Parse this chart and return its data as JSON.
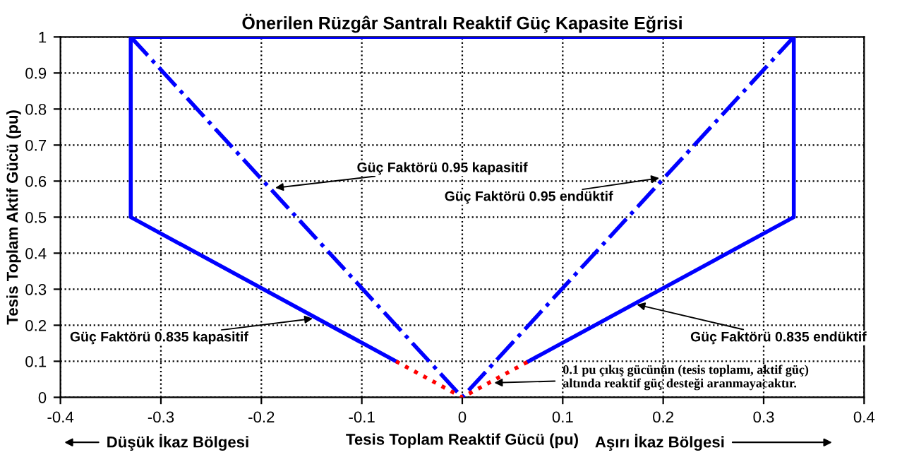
{
  "chart_data": {
    "type": "line",
    "title": "Önerilen Rüzgâr Santralı Reaktif Güç Kapasite Eğrisi",
    "xlabel": "Tesis Toplam Reaktif Gücü (pu)",
    "ylabel": "Tesis Toplam Aktif Gücü (pu)",
    "xlim": [
      -0.4,
      0.4
    ],
    "xticks": [
      -0.4,
      -0.3,
      -0.2,
      -0.1,
      0,
      0.1,
      0.2,
      0.3,
      0.4
    ],
    "ylim": [
      0,
      1
    ],
    "yticks": [
      0,
      0.1,
      0.2,
      0.3,
      0.4,
      0.5,
      0.6,
      0.7,
      0.8,
      0.9,
      1
    ],
    "grid": true,
    "legend": false,
    "marker": "none",
    "series": [
      {
        "x": [
          -0.066,
          -0.33,
          -0.33,
          0.33,
          0.33,
          0.066
        ],
        "values": [
          0.1,
          0.5,
          1,
          1,
          0.5,
          0.1
        ],
        "color": "#0000ff",
        "line_style": "solid"
      },
      {
        "x": [
          -0.33,
          0,
          0.33
        ],
        "values": [
          1,
          0,
          1
        ],
        "color": "#0000ff",
        "line_style": "dashdot"
      },
      {
        "x": [
          -0.066,
          0,
          0.066
        ],
        "values": [
          0.1,
          0,
          0.1
        ],
        "color": "#ff0000",
        "line_style": "dotted"
      }
    ],
    "annotations": [
      {
        "text": "Güç Faktörü 0.95 kapasitif",
        "x": -0.19,
        "y": 0.58
      },
      {
        "text": "Güç Faktörü 0.95 endüktif",
        "x": 0.2,
        "y": 0.61
      },
      {
        "text": "Güç Faktörü 0.835 kapasitif",
        "x": -0.145,
        "y": 0.22
      },
      {
        "text": "Güç Faktörü 0.835 endüktif",
        "x": 0.17,
        "y": 0.26
      },
      {
        "text": "0.1 pu çıkış gücünün (tesis toplamı, aktif güç)\naltında reaktif güç desteği aranmayacaktır.",
        "x": 0.028,
        "y": 0.04
      },
      "Düşük İkaz Bölgesi",
      "Aşırı İkaz Bölgesi"
    ]
  }
}
